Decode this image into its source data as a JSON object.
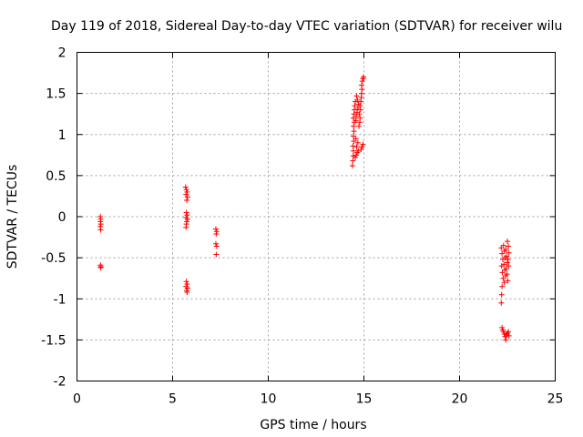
{
  "chart_data": {
    "type": "scatter",
    "title": "Day 119 of 2018, Sidereal Day-to-day VTEC variation (SDTVAR) for receiver wilu",
    "xlabel": "GPS time / hours",
    "ylabel": "SDTVAR / TECUs",
    "xlim": [
      0,
      25
    ],
    "ylim": [
      -2,
      2
    ],
    "xticks": [
      0,
      5,
      10,
      15,
      20,
      25
    ],
    "xtick_labels": [
      "0",
      "5",
      "10",
      "15",
      "20",
      "25"
    ],
    "yticks": [
      -2,
      -1.5,
      -1,
      -0.5,
      0,
      0.5,
      1,
      1.5,
      2
    ],
    "ytick_labels": [
      "-2",
      "-1.5",
      "-1",
      "-0.5",
      "0",
      "0.5",
      "1",
      "1.5",
      "2"
    ],
    "grid": true,
    "marker": "+",
    "color": "#ff0000",
    "series": [
      {
        "name": "SDTVAR",
        "points": [
          [
            1.22,
            0.0
          ],
          [
            1.24,
            -0.03
          ],
          [
            1.23,
            -0.06
          ],
          [
            1.25,
            -0.09
          ],
          [
            1.22,
            -0.12
          ],
          [
            1.24,
            -0.16
          ],
          [
            1.23,
            -0.59
          ],
          [
            1.25,
            -0.61
          ],
          [
            1.24,
            -0.62
          ],
          [
            5.68,
            0.36
          ],
          [
            5.72,
            0.33
          ],
          [
            5.76,
            0.3
          ],
          [
            5.7,
            0.27
          ],
          [
            5.78,
            0.24
          ],
          [
            5.74,
            0.2
          ],
          [
            5.72,
            0.05
          ],
          [
            5.76,
            0.02
          ],
          [
            5.7,
            -0.01
          ],
          [
            5.78,
            -0.03
          ],
          [
            5.74,
            -0.06
          ],
          [
            5.72,
            -0.09
          ],
          [
            5.7,
            -0.13
          ],
          [
            5.72,
            -0.79
          ],
          [
            5.76,
            -0.82
          ],
          [
            5.7,
            -0.85
          ],
          [
            5.78,
            -0.87
          ],
          [
            5.74,
            -0.9
          ],
          [
            5.76,
            -0.92
          ],
          [
            7.26,
            -0.15
          ],
          [
            7.3,
            -0.18
          ],
          [
            7.28,
            -0.21
          ],
          [
            7.26,
            -0.33
          ],
          [
            7.3,
            -0.36
          ],
          [
            7.28,
            -0.46
          ],
          [
            14.4,
            0.62
          ],
          [
            14.42,
            0.68
          ],
          [
            14.44,
            0.74
          ],
          [
            14.45,
            0.8
          ],
          [
            14.43,
            0.86
          ],
          [
            14.47,
            0.92
          ],
          [
            14.45,
            0.98
          ],
          [
            14.48,
            1.04
          ],
          [
            14.46,
            1.1
          ],
          [
            14.45,
            1.2
          ],
          [
            14.48,
            1.25
          ],
          [
            14.5,
            1.3
          ],
          [
            14.52,
            1.35
          ],
          [
            14.55,
            1.4
          ],
          [
            14.5,
            1.15
          ],
          [
            14.55,
            0.72
          ],
          [
            14.6,
            0.75
          ],
          [
            14.65,
            0.78
          ],
          [
            14.7,
            0.8
          ],
          [
            14.62,
            0.85
          ],
          [
            14.58,
            0.95
          ],
          [
            14.68,
            0.9
          ],
          [
            14.6,
            1.22
          ],
          [
            14.64,
            1.27
          ],
          [
            14.68,
            1.32
          ],
          [
            14.72,
            1.37
          ],
          [
            14.66,
            1.42
          ],
          [
            14.62,
            1.47
          ],
          [
            14.58,
            1.17
          ],
          [
            14.74,
            1.1
          ],
          [
            14.78,
            1.15
          ],
          [
            14.8,
            1.2
          ],
          [
            14.76,
            1.25
          ],
          [
            14.82,
            1.3
          ],
          [
            14.8,
            1.35
          ],
          [
            14.84,
            1.4
          ],
          [
            14.86,
            1.45
          ],
          [
            14.88,
            1.5
          ],
          [
            14.9,
            1.55
          ],
          [
            14.88,
            1.6
          ],
          [
            14.92,
            1.65
          ],
          [
            14.95,
            1.68
          ],
          [
            14.98,
            1.7
          ],
          [
            14.85,
            0.82
          ],
          [
            14.9,
            0.85
          ],
          [
            14.95,
            0.88
          ],
          [
            22.18,
            -0.38
          ],
          [
            22.22,
            -0.45
          ],
          [
            22.26,
            -0.52
          ],
          [
            22.2,
            -0.6
          ],
          [
            22.24,
            -0.68
          ],
          [
            22.28,
            -0.75
          ],
          [
            22.22,
            -0.85
          ],
          [
            22.2,
            -0.95
          ],
          [
            22.18,
            -1.05
          ],
          [
            22.3,
            -0.35
          ],
          [
            22.34,
            -0.42
          ],
          [
            22.38,
            -0.5
          ],
          [
            22.32,
            -0.58
          ],
          [
            22.36,
            -0.65
          ],
          [
            22.4,
            -0.72
          ],
          [
            22.34,
            -0.8
          ],
          [
            22.42,
            -0.4
          ],
          [
            22.46,
            -0.48
          ],
          [
            22.5,
            -0.56
          ],
          [
            22.44,
            -0.63
          ],
          [
            22.48,
            -0.7
          ],
          [
            22.52,
            -0.78
          ],
          [
            22.5,
            -0.3
          ],
          [
            22.55,
            -0.36
          ],
          [
            22.58,
            -0.44
          ],
          [
            22.54,
            -0.52
          ],
          [
            22.56,
            -0.6
          ],
          [
            22.22,
            -1.35
          ],
          [
            22.26,
            -1.38
          ],
          [
            22.3,
            -1.4
          ],
          [
            22.34,
            -1.43
          ],
          [
            22.38,
            -1.46
          ],
          [
            22.42,
            -1.5
          ],
          [
            22.46,
            -1.44
          ],
          [
            22.5,
            -1.42
          ],
          [
            22.55,
            -1.4
          ],
          [
            22.58,
            -1.45
          ]
        ]
      }
    ]
  }
}
